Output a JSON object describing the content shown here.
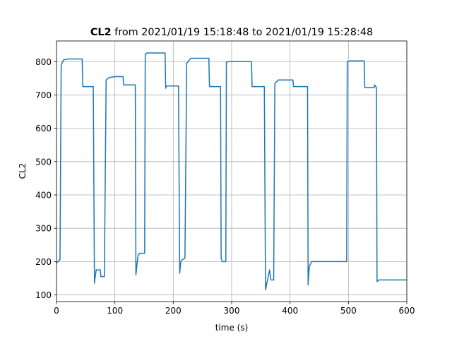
{
  "chart_data": {
    "type": "line",
    "title_bold": "CL2",
    "title": "from 2021/01/19 15:18:48 to 2021/01/19 15:28:48",
    "x_label": "time (s)",
    "y_label": "CL2",
    "xlim": [
      0,
      600
    ],
    "xticks": [
      0,
      100,
      200,
      300,
      400,
      500,
      600
    ],
    "ylim": [
      80,
      862
    ],
    "yticks": [
      100,
      200,
      300,
      400,
      500,
      600,
      700,
      800
    ],
    "grid": true,
    "series": [
      {
        "name": "CL2",
        "color": "#1f77b4",
        "x": [
          0,
          5,
          6,
          8,
          12,
          20,
          44,
          45,
          63,
          65,
          66,
          68,
          75,
          76,
          82,
          85,
          90,
          100,
          114,
          115,
          135,
          136,
          138,
          140,
          143,
          151,
          152,
          155,
          186,
          187,
          188,
          209,
          211,
          213,
          215,
          220,
          223,
          230,
          261,
          262,
          281,
          282,
          284,
          290,
          291,
          295,
          334,
          335,
          356,
          358,
          362,
          365,
          367,
          372,
          374,
          380,
          405,
          406,
          430,
          431,
          433,
          437,
          497,
          498,
          502,
          527,
          528,
          544,
          545,
          548,
          549,
          552,
          600
        ],
        "values": [
          195,
          205,
          205,
          790,
          805,
          808,
          808,
          725,
          725,
          135,
          150,
          175,
          175,
          155,
          155,
          745,
          752,
          755,
          755,
          730,
          730,
          160,
          195,
          220,
          225,
          225,
          822,
          826,
          826,
          720,
          727,
          727,
          165,
          200,
          205,
          210,
          795,
          810,
          810,
          725,
          725,
          210,
          200,
          200,
          798,
          800,
          800,
          725,
          725,
          115,
          150,
          175,
          145,
          145,
          735,
          745,
          745,
          725,
          725,
          130,
          185,
          200,
          200,
          800,
          802,
          802,
          722,
          722,
          730,
          722,
          140,
          145,
          145
        ]
      }
    ]
  }
}
